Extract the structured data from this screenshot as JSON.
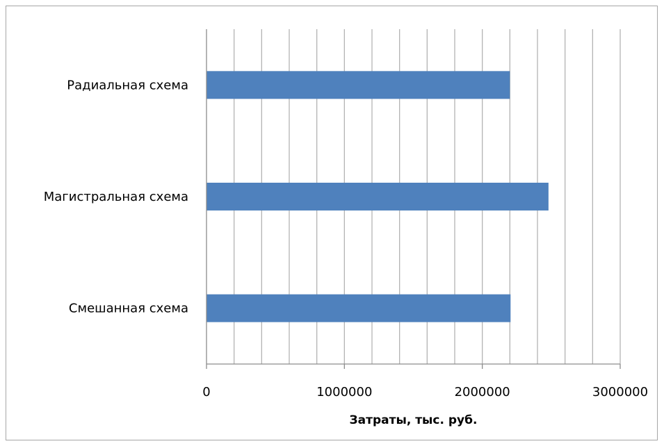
{
  "chart_data": {
    "type": "bar",
    "orientation": "horizontal",
    "categories": [
      "Радиальная схема",
      "Магистральная схема",
      "Смешанная схема"
    ],
    "values": [
      2200000,
      2480000,
      2205000
    ],
    "xlabel": "Затраты, тыс. руб.",
    "ylabel": "",
    "title": "",
    "xlim": [
      0,
      3000000
    ],
    "x_ticks": [
      0,
      1000000,
      2000000,
      3000000
    ],
    "x_tick_labels": [
      "0",
      "1000000",
      "2000000",
      "3000000"
    ],
    "minor_grid_step": 200000,
    "grid": "vertical",
    "legend": "none",
    "bar_color": "#4f81bd",
    "grid_color": "#b3b3b3"
  }
}
